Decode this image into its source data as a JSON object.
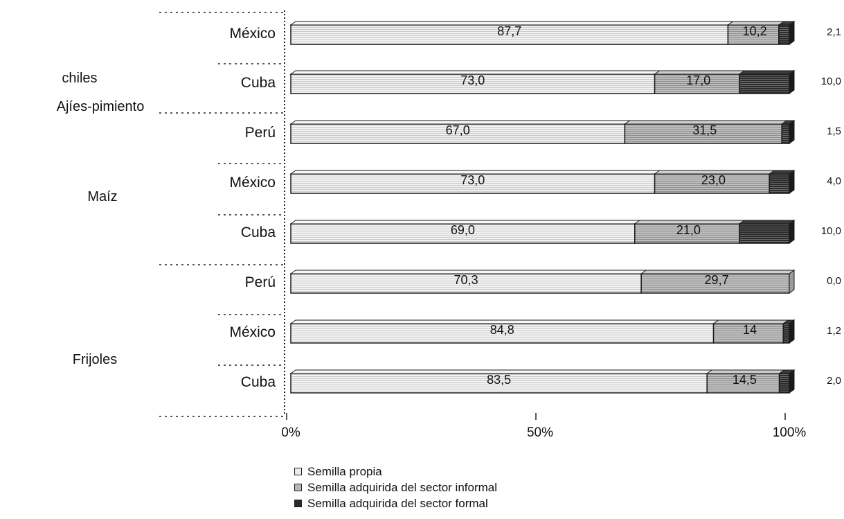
{
  "chart_data": {
    "type": "bar",
    "orientation": "horizontal",
    "stacked": true,
    "x_ticks": [
      "0%",
      "50%",
      "100%"
    ],
    "xlim": [
      0,
      100
    ],
    "groups": [
      {
        "label_lines": [
          "chiles",
          "Ajíes-pimiento"
        ],
        "categories": [
          "México",
          "Cuba",
          "Perú"
        ]
      },
      {
        "label_lines": [
          "Maíz"
        ],
        "categories": [
          "México",
          "Cuba"
        ]
      },
      {
        "label_lines": [
          "Frijoles"
        ],
        "categories": [
          "Perú",
          "México",
          "Cuba"
        ]
      }
    ],
    "series": [
      {
        "name": "Semilla propia",
        "color": "#ececec",
        "values": [
          87.7,
          73.0,
          67.0,
          73.0,
          69.0,
          70.3,
          84.8,
          83.5
        ],
        "labels": [
          "87,7",
          "73,0",
          "67,0",
          "73,0",
          "69,0",
          "70,3",
          "84,8",
          "83,5"
        ]
      },
      {
        "name": "Semilla adquirida del sector informal",
        "color": "#b8b8b8",
        "values": [
          10.2,
          17.0,
          31.5,
          23.0,
          21.0,
          29.7,
          14,
          14.5
        ],
        "labels": [
          "10,2",
          "17,0",
          "31,5",
          "23,0",
          "21,0",
          "29,7",
          "14",
          "14,5"
        ]
      },
      {
        "name": "Semilla adquirida del sector formal",
        "color": "#2a2a2a",
        "values": [
          2.1,
          10.0,
          1.5,
          4.0,
          10.0,
          0.0,
          1.2,
          2.0
        ],
        "labels": [
          "2,1",
          "10,0",
          "1,5",
          "4,0",
          "10,0",
          "0,0",
          "1,2",
          "2,0"
        ]
      }
    ],
    "legend_position": "bottom",
    "grid": false
  }
}
